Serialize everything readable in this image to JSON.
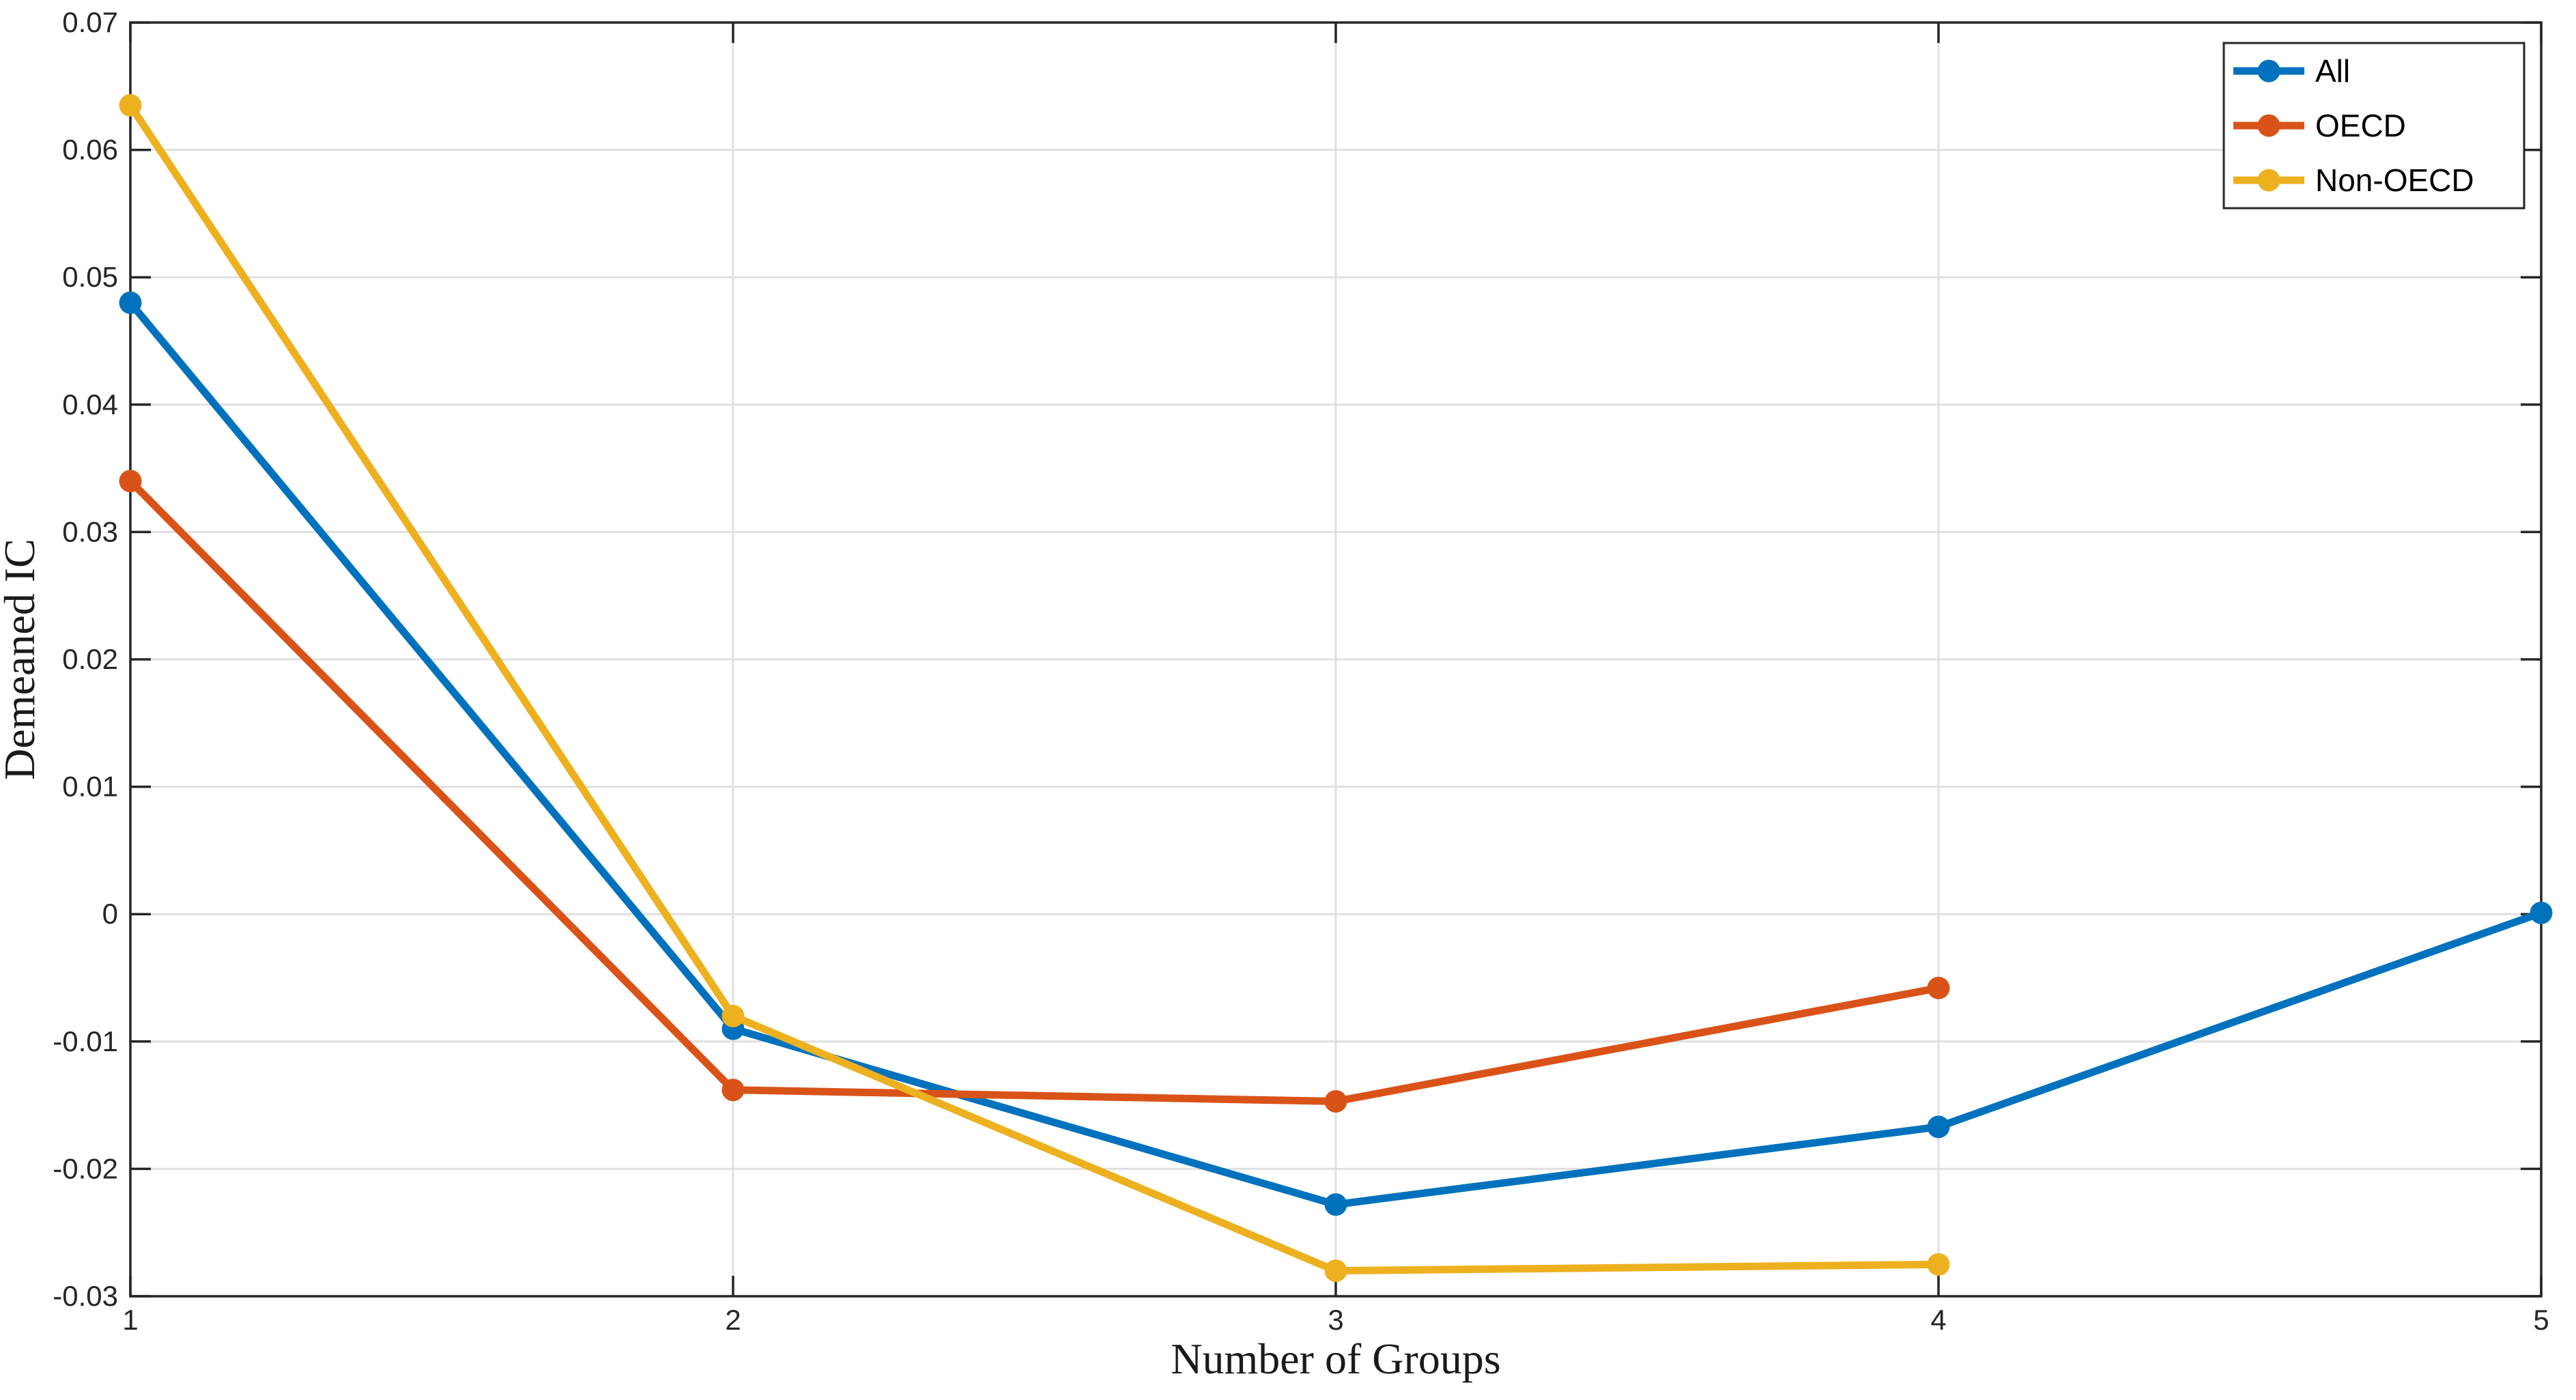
{
  "figure": {
    "background": "#ffffff",
    "axis_color": "#262626",
    "grid_color": "#e0e0e0",
    "frame_width": 3.5,
    "tick_length": 30,
    "series_line_width": 11,
    "marker_radius": 16.5
  },
  "chart_data": {
    "type": "line",
    "title": "",
    "xlabel": "Number of Groups",
    "ylabel": "Demeaned IC",
    "xlim": [
      1,
      5
    ],
    "ylim": [
      -0.03,
      0.07
    ],
    "x_ticks": [
      1,
      2,
      3,
      4,
      5
    ],
    "x_tick_labels": [
      "1",
      "2",
      "3",
      "4",
      "5"
    ],
    "y_ticks": [
      -0.03,
      -0.02,
      -0.01,
      0,
      0.01,
      0.02,
      0.03,
      0.04,
      0.05,
      0.06,
      0.07
    ],
    "y_tick_labels": [
      "-0.03",
      "-0.02",
      "-0.01",
      "0",
      "0.01",
      "0.02",
      "0.03",
      "0.04",
      "0.05",
      "0.06",
      "0.07"
    ],
    "grid": true,
    "legend_position": "northeast",
    "legend_entries": [
      "All",
      "OECD",
      "Non-OECD"
    ],
    "series": [
      {
        "name": "All",
        "color": "#0072BD",
        "x": [
          1,
          2,
          3,
          4,
          5
        ],
        "y": [
          0.048,
          -0.009,
          -0.0228,
          -0.0167,
          0.0001
        ]
      },
      {
        "name": "OECD",
        "color": "#D95319",
        "x": [
          1,
          2,
          3,
          4
        ],
        "y": [
          0.034,
          -0.0138,
          -0.0147,
          -0.0058
        ]
      },
      {
        "name": "Non-OECD",
        "color": "#EDB120",
        "x": [
          1,
          2,
          3,
          4
        ],
        "y": [
          0.0635,
          -0.008,
          -0.028,
          -0.0275
        ]
      }
    ]
  }
}
